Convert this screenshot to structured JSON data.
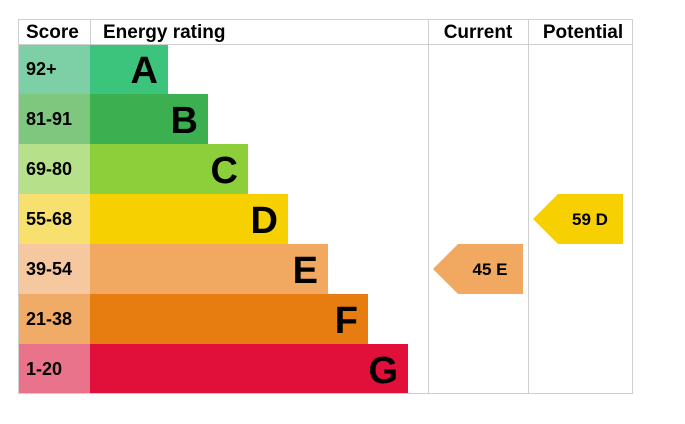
{
  "headers": {
    "score": "Score",
    "rating": "Energy rating",
    "current": "Current",
    "potential": "Potential"
  },
  "chart_data": {
    "type": "epc-rating",
    "bands": [
      {
        "letter": "A",
        "range": "92+",
        "color": "#3cc47d",
        "score_color": "#7dcfa6"
      },
      {
        "letter": "B",
        "range": "81-91",
        "color": "#3cb050",
        "score_color": "#7fc77f"
      },
      {
        "letter": "C",
        "range": "69-80",
        "color": "#8dce3b",
        "score_color": "#b6e08a"
      },
      {
        "letter": "D",
        "range": "55-68",
        "color": "#f6d000",
        "score_color": "#f8e06e"
      },
      {
        "letter": "E",
        "range": "39-54",
        "color": "#f1a860",
        "score_color": "#f6c8a0"
      },
      {
        "letter": "F",
        "range": "21-38",
        "color": "#e77c11",
        "score_color": "#f0ab67"
      },
      {
        "letter": "G",
        "range": "1-20",
        "color": "#e0103a",
        "score_color": "#e8738a"
      }
    ],
    "current": {
      "value": 45,
      "band": "E",
      "label": "45 E",
      "color": "#f1a860"
    },
    "potential": {
      "value": 59,
      "band": "D",
      "label": "59 D",
      "color": "#f6d000"
    }
  }
}
